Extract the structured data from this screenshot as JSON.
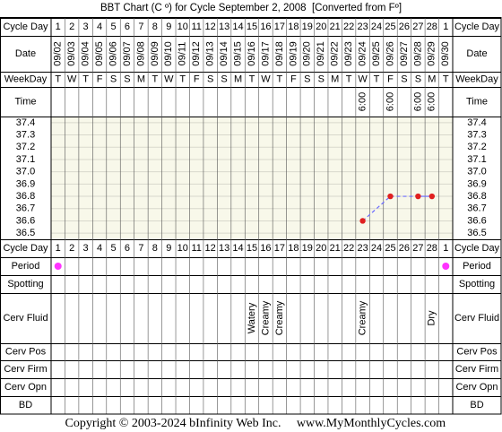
{
  "title": "BBT Chart (C º) for Cycle September 2, 2008  [Converted from Fº]",
  "row_labels": {
    "cycle_day": "Cycle Day",
    "date": "Date",
    "weekday": "WeekDay",
    "time": "Time",
    "period": "Period",
    "spotting": "Spotting",
    "cerv_fluid": "Cerv Fluid",
    "cerv_pos": "Cerv Pos",
    "cerv_firm": "Cerv Firm",
    "cerv_opn": "Cerv Opn",
    "bd": "BD"
  },
  "cycle_days": [
    1,
    2,
    3,
    4,
    5,
    6,
    7,
    8,
    9,
    10,
    11,
    12,
    13,
    14,
    15,
    16,
    17,
    18,
    19,
    20,
    21,
    22,
    23,
    24,
    25,
    26,
    27,
    28,
    1
  ],
  "dates": [
    "09/02",
    "09/03",
    "09/04",
    "09/05",
    "09/06",
    "09/07",
    "09/08",
    "09/09",
    "09/10",
    "09/11",
    "09/12",
    "09/13",
    "09/14",
    "09/15",
    "09/16",
    "09/17",
    "09/18",
    "09/19",
    "09/20",
    "09/21",
    "09/22",
    "09/23",
    "09/24",
    "09/25",
    "09/26",
    "09/27",
    "09/28",
    "09/29",
    "09/30"
  ],
  "weekdays": [
    "T",
    "W",
    "T",
    "F",
    "S",
    "S",
    "M",
    "T",
    "W",
    "T",
    "F",
    "S",
    "S",
    "M",
    "T",
    "W",
    "T",
    "F",
    "S",
    "S",
    "M",
    "T",
    "W",
    "T",
    "F",
    "S",
    "S",
    "M",
    "T"
  ],
  "times": [
    null,
    null,
    null,
    null,
    null,
    null,
    null,
    null,
    null,
    null,
    null,
    null,
    null,
    null,
    null,
    null,
    null,
    null,
    null,
    null,
    null,
    null,
    "6:00",
    null,
    "6:00",
    null,
    "6:00",
    "6:00",
    null
  ],
  "chart_data": {
    "type": "line",
    "ylim": [
      36.45,
      37.45
    ],
    "yticks": [
      37.4,
      37.3,
      37.2,
      37.1,
      {
        "value": 37,
        "label": "37.0"
      },
      36.9,
      36.8,
      36.7,
      36.6,
      36.5
    ],
    "values": [
      null,
      null,
      null,
      null,
      null,
      null,
      null,
      null,
      null,
      null,
      null,
      null,
      null,
      null,
      null,
      null,
      null,
      null,
      null,
      null,
      null,
      null,
      36.6,
      null,
      36.8,
      null,
      36.8,
      36.8,
      null
    ],
    "color": "#e02020",
    "line_color": "#6a6aff",
    "grid": true
  },
  "period": [
    true,
    false,
    false,
    false,
    false,
    false,
    false,
    false,
    false,
    false,
    false,
    false,
    false,
    false,
    false,
    false,
    false,
    false,
    false,
    false,
    false,
    false,
    false,
    false,
    false,
    false,
    false,
    false,
    true
  ],
  "period_color": "#ff33ff",
  "cerv_fluid": [
    null,
    null,
    null,
    null,
    null,
    null,
    null,
    null,
    null,
    null,
    null,
    null,
    null,
    null,
    "Watery",
    "Creamy",
    "Creamy",
    null,
    null,
    null,
    null,
    null,
    "Creamy",
    null,
    null,
    null,
    null,
    "Dry",
    null
  ],
  "footer": {
    "copyright": "Copyright © 2003-2024 bInfinity Web Inc.",
    "site": "www.MyMonthlyCycles.com"
  }
}
